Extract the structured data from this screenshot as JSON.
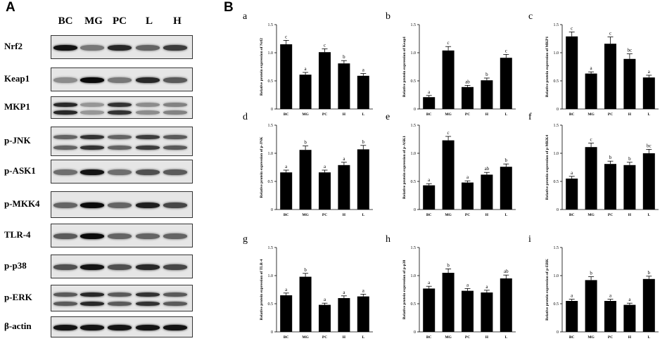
{
  "panel_labels": {
    "a": "A",
    "b": "B"
  },
  "blot": {
    "lanes": [
      "BC",
      "MG",
      "PC",
      "L",
      "H"
    ],
    "rows": [
      {
        "label": "Nrf2",
        "bands": [
          1,
          [
            0.95,
            0.45,
            0.85,
            0.55,
            0.75
          ]
        ]
      },
      {
        "label": "Keap1",
        "bands": [
          1,
          [
            0.35,
            1.0,
            0.45,
            0.85,
            0.6
          ]
        ]
      },
      {
        "label": "MKP1",
        "bands": [
          2,
          [
            0.85,
            0.3,
            0.8,
            0.35,
            0.4
          ]
        ]
      },
      {
        "label": "p-JNK",
        "bands": [
          2,
          [
            0.55,
            0.8,
            0.55,
            0.75,
            0.6
          ]
        ]
      },
      {
        "label": "p-ASK1",
        "bands": [
          1,
          [
            0.5,
            0.95,
            0.5,
            0.65,
            0.6
          ]
        ]
      },
      {
        "label": "p-MKK4",
        "bands": [
          1,
          [
            0.55,
            1.0,
            0.55,
            0.9,
            0.7
          ]
        ]
      },
      {
        "label": "TLR-4",
        "bands": [
          1,
          [
            0.6,
            1.0,
            0.55,
            0.55,
            0.55
          ]
        ]
      },
      {
        "label": "p-p38",
        "bands": [
          1,
          [
            0.65,
            0.95,
            0.65,
            0.85,
            0.7
          ]
        ]
      },
      {
        "label": "p-ERK",
        "bands": [
          2,
          [
            0.6,
            0.85,
            0.6,
            0.8,
            0.6
          ]
        ]
      },
      {
        "label": "β-actin",
        "bands": [
          1,
          [
            0.95,
            0.95,
            0.95,
            0.95,
            0.95
          ]
        ]
      }
    ]
  },
  "chart_data": [
    {
      "type": "bar",
      "panel": "a",
      "categories": [
        "BC",
        "MG",
        "PC",
        "H",
        "L"
      ],
      "values": [
        1.15,
        0.61,
        1.01,
        0.81,
        0.59
      ],
      "errors": [
        0.07,
        0.04,
        0.06,
        0.05,
        0.04
      ],
      "letters": [
        "c",
        "a",
        "c",
        "b",
        "a"
      ],
      "ylabel": "Relative protein expression of Nrf2",
      "yticks": [
        "0",
        "0.5",
        "1.0",
        "1.5"
      ],
      "ylim": [
        0,
        1.5
      ]
    },
    {
      "type": "bar",
      "panel": "b",
      "categories": [
        "BC",
        "MG",
        "PC",
        "H",
        "L"
      ],
      "values": [
        0.21,
        1.04,
        0.39,
        0.51,
        0.91
      ],
      "errors": [
        0.03,
        0.07,
        0.03,
        0.04,
        0.06
      ],
      "letters": [
        "a",
        "c",
        "ab",
        "b",
        "c"
      ],
      "ylabel": "Relative protein expression of Keap1",
      "yticks": [
        "0",
        "0.5",
        "1.0",
        "1.5"
      ],
      "ylim": [
        0,
        1.5
      ]
    },
    {
      "type": "bar",
      "panel": "c",
      "categories": [
        "BC",
        "MG",
        "PC",
        "H",
        "L"
      ],
      "values": [
        1.29,
        0.63,
        1.16,
        0.89,
        0.56
      ],
      "errors": [
        0.08,
        0.03,
        0.12,
        0.09,
        0.04
      ],
      "letters": [
        "c",
        "a",
        "c",
        "bc",
        "a"
      ],
      "ylabel": "Relative protein expression of MKP1",
      "yticks": [
        "0",
        "0.5",
        "1.0",
        "1.5"
      ],
      "ylim": [
        0,
        1.5
      ]
    },
    {
      "type": "bar",
      "panel": "d",
      "categories": [
        "BC",
        "MG",
        "PC",
        "H",
        "L"
      ],
      "values": [
        0.66,
        1.06,
        0.66,
        0.79,
        1.07
      ],
      "errors": [
        0.04,
        0.07,
        0.04,
        0.05,
        0.07
      ],
      "letters": [
        "a",
        "b",
        "a",
        "a",
        "b"
      ],
      "ylabel": "Relative protein expression of p-JNK",
      "yticks": [
        "0",
        "0.5",
        "1.0",
        "1.5"
      ],
      "ylim": [
        0,
        1.5
      ]
    },
    {
      "type": "bar",
      "panel": "e",
      "categories": [
        "BC",
        "MG",
        "PC",
        "H",
        "L"
      ],
      "values": [
        0.43,
        1.23,
        0.48,
        0.62,
        0.76
      ],
      "errors": [
        0.03,
        0.07,
        0.03,
        0.04,
        0.05
      ],
      "letters": [
        "a",
        "c",
        "a",
        "ab",
        "b"
      ],
      "ylabel": "Relative protein expression of p-ASK1",
      "yticks": [
        "0",
        "0.5",
        "1.0",
        "1.5"
      ],
      "ylim": [
        0,
        1.5
      ]
    },
    {
      "type": "bar",
      "panel": "f",
      "categories": [
        "BC",
        "MG",
        "PC",
        "H",
        "L"
      ],
      "values": [
        0.55,
        1.11,
        0.81,
        0.79,
        1.0
      ],
      "errors": [
        0.04,
        0.07,
        0.05,
        0.05,
        0.07
      ],
      "letters": [
        "a",
        "c",
        "b",
        "b",
        "bc"
      ],
      "ylabel": "Relative protein expression of p-MKK4",
      "yticks": [
        "0",
        "0.5",
        "1.0",
        "1.5"
      ],
      "ylim": [
        0,
        1.5
      ]
    },
    {
      "type": "bar",
      "panel": "g",
      "categories": [
        "BC",
        "MG",
        "PC",
        "H",
        "L"
      ],
      "values": [
        0.65,
        0.98,
        0.48,
        0.6,
        0.63
      ],
      "errors": [
        0.04,
        0.06,
        0.03,
        0.04,
        0.04
      ],
      "letters": [
        "a",
        "b",
        "a",
        "a",
        "a"
      ],
      "ylabel": "Relative protein expression of TLR-4",
      "yticks": [
        "0",
        "0.5",
        "1.0",
        "1.5"
      ],
      "ylim": [
        0,
        1.5
      ]
    },
    {
      "type": "bar",
      "panel": "h",
      "categories": [
        "BC",
        "MG",
        "PC",
        "H",
        "L"
      ],
      "values": [
        0.77,
        1.05,
        0.73,
        0.7,
        0.95
      ],
      "errors": [
        0.04,
        0.07,
        0.04,
        0.04,
        0.06
      ],
      "letters": [
        "a",
        "b",
        "a",
        "a",
        "ab"
      ],
      "ylabel": "Relative protein expression of p-p38",
      "yticks": [
        "0",
        "0.5",
        "1.0",
        "1.5"
      ],
      "ylim": [
        0,
        1.5
      ]
    },
    {
      "type": "bar",
      "panel": "i",
      "categories": [
        "BC",
        "MG",
        "PC",
        "H",
        "L"
      ],
      "values": [
        0.55,
        0.92,
        0.55,
        0.48,
        0.94
      ],
      "errors": [
        0.03,
        0.06,
        0.03,
        0.03,
        0.05
      ],
      "letters": [
        "a",
        "b",
        "a",
        "a",
        "b"
      ],
      "ylabel": "Relative protein expression of p-ERK",
      "yticks": [
        "0",
        "0.5",
        "1.0",
        "1.5"
      ],
      "ylim": [
        0,
        1.5
      ]
    }
  ]
}
